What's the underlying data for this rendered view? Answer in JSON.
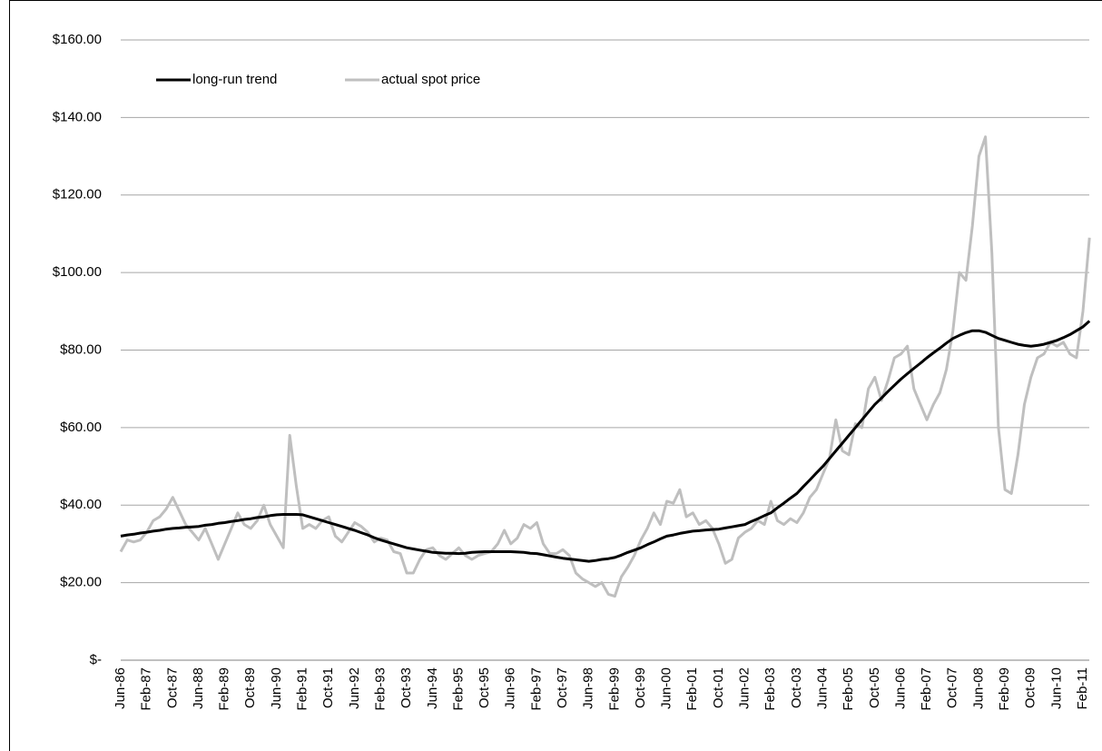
{
  "chart_data": {
    "type": "line",
    "categories": [
      "Jun-86",
      null,
      null,
      null,
      "Feb-87",
      null,
      null,
      null,
      "Oct-87",
      null,
      null,
      null,
      "Jun-88",
      null,
      null,
      null,
      "Feb-89",
      null,
      null,
      null,
      "Oct-89",
      null,
      null,
      null,
      "Jun-90",
      null,
      null,
      null,
      "Feb-91",
      null,
      null,
      null,
      "Oct-91",
      null,
      null,
      null,
      "Jun-92",
      null,
      null,
      null,
      "Feb-93",
      null,
      null,
      null,
      "Oct-93",
      null,
      null,
      null,
      "Jun-94",
      null,
      null,
      null,
      "Feb-95",
      null,
      null,
      null,
      "Oct-95",
      null,
      null,
      null,
      "Jun-96",
      null,
      null,
      null,
      "Feb-97",
      null,
      null,
      null,
      "Oct-97",
      null,
      null,
      null,
      "Jun-98",
      null,
      null,
      null,
      "Feb-99",
      null,
      null,
      null,
      "Oct-99",
      null,
      null,
      null,
      "Jun-00",
      null,
      null,
      null,
      "Feb-01",
      null,
      null,
      null,
      "Oct-01",
      null,
      null,
      null,
      "Jun-02",
      null,
      null,
      null,
      "Feb-03",
      null,
      null,
      null,
      "Oct-03",
      null,
      null,
      null,
      "Jun-04",
      null,
      null,
      null,
      "Feb-05",
      null,
      null,
      null,
      "Oct-05",
      null,
      null,
      null,
      "Jun-06",
      null,
      null,
      null,
      "Feb-07",
      null,
      null,
      null,
      "Oct-07",
      null,
      null,
      null,
      "Jun-08",
      null,
      null,
      null,
      "Feb-09",
      null,
      null,
      null,
      "Oct-09",
      null,
      null,
      null,
      "Jun-10",
      null,
      null,
      null,
      "Feb-11",
      null
    ],
    "series": [
      {
        "name": "long-run trend",
        "color": "#000000",
        "values": [
          32,
          32.3,
          32.5,
          32.8,
          33,
          33.3,
          33.5,
          33.8,
          34,
          34.1,
          34.3,
          34.4,
          34.5,
          34.8,
          35,
          35.3,
          35.5,
          35.8,
          36,
          36.3,
          36.5,
          36.8,
          37,
          37.3,
          37.5,
          37.6,
          37.6,
          37.6,
          37.5,
          37,
          36.5,
          36,
          35.5,
          35,
          34.5,
          34,
          33.5,
          32.9,
          32.3,
          31.6,
          31,
          30.5,
          30,
          29.5,
          29,
          28.7,
          28.4,
          28.1,
          27.8,
          27.7,
          27.6,
          27.6,
          27.5,
          27.6,
          27.8,
          27.9,
          28,
          28,
          28,
          28,
          28,
          27.9,
          27.8,
          27.6,
          27.5,
          27.2,
          26.9,
          26.6,
          26.3,
          26.1,
          25.9,
          25.7,
          25.5,
          25.7,
          26,
          26.2,
          26.5,
          27.1,
          27.8,
          28.4,
          29,
          29.8,
          30.5,
          31.3,
          32,
          32.3,
          32.7,
          33,
          33.3,
          33.4,
          33.6,
          33.7,
          33.8,
          34.1,
          34.4,
          34.7,
          35,
          35.8,
          36.5,
          37.3,
          38,
          39.3,
          40.5,
          41.8,
          43,
          44.8,
          46.5,
          48.3,
          50,
          52,
          54,
          56,
          58,
          60,
          62,
          64,
          66,
          67.6,
          69.3,
          70.9,
          72.5,
          73.9,
          75.3,
          76.6,
          78,
          79.3,
          80.5,
          81.8,
          83,
          83.8,
          84.5,
          85,
          85,
          84.6,
          83.8,
          83,
          82.5,
          82,
          81.5,
          81.2,
          81,
          81.2,
          81.5,
          82,
          82.5,
          83.2,
          84,
          85,
          86,
          87.5
        ]
      },
      {
        "name": "actual spot price",
        "color": "#bfbfbf",
        "values": [
          28,
          31,
          30.5,
          31,
          33,
          36,
          37,
          39,
          42,
          38.5,
          35,
          33,
          31,
          34,
          30,
          26,
          30,
          34,
          38,
          35,
          34,
          36,
          40,
          35,
          32,
          29,
          58,
          45,
          34,
          35,
          34,
          36,
          37,
          32,
          30.5,
          33,
          35.5,
          34.5,
          33,
          30.5,
          31.5,
          31,
          28,
          27.5,
          22.5,
          22.5,
          26,
          28.5,
          29,
          27,
          26,
          27.5,
          29,
          27,
          26,
          27,
          27.5,
          28,
          30,
          33.5,
          30,
          31.5,
          35,
          34,
          35.5,
          30,
          27.5,
          27.5,
          28.5,
          27,
          22.5,
          21,
          20,
          19,
          20,
          17,
          16.5,
          21.5,
          24,
          27,
          31,
          34,
          38,
          35,
          41,
          40.5,
          44,
          37,
          38,
          35,
          36,
          34,
          30,
          25,
          26,
          31.5,
          33,
          34,
          36,
          35,
          41,
          36,
          35,
          36.5,
          35.5,
          38,
          42,
          44,
          48,
          52,
          62,
          54,
          53,
          61,
          60,
          70,
          73,
          67,
          72,
          78,
          79,
          81,
          70,
          66,
          62,
          66,
          69,
          75,
          85,
          100,
          98,
          112,
          130,
          135,
          105,
          60,
          44,
          43,
          53,
          66,
          73,
          78,
          79,
          82,
          81,
          82,
          79,
          78,
          90,
          109
        ]
      }
    ],
    "ylim": [
      0,
      160
    ],
    "yticks": [
      {
        "value": 0,
        "label": "$-"
      },
      {
        "value": 20,
        "label": "$20.00"
      },
      {
        "value": 40,
        "label": "$40.00"
      },
      {
        "value": 60,
        "label": "$60.00"
      },
      {
        "value": 80,
        "label": "$80.00"
      },
      {
        "value": 100,
        "label": "$100.00"
      },
      {
        "value": 120,
        "label": "$120.00"
      },
      {
        "value": 140,
        "label": "$140.00"
      },
      {
        "value": 160,
        "label": "$160.00"
      }
    ],
    "grid": true
  }
}
